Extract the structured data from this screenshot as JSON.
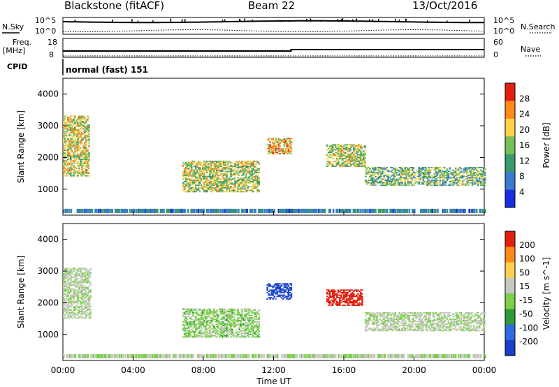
{
  "header": {
    "station": "Blackstone (fitACF)",
    "beam": "Beam 22",
    "date": "13/Oct/2016"
  },
  "status_panels": {
    "nsky_label": "N.Sky",
    "nsearch_label": "N.Search",
    "freq_label_top": "Freq.",
    "freq_label_bottom": "[MHz]",
    "nave_label": "Nave",
    "cpid_label": "CPID",
    "cpid_value": "normal (fast) 151",
    "noise_ticks_left": [
      "10^5",
      "10^0"
    ],
    "noise_ticks_right": [
      "10^5",
      "10^0"
    ],
    "freq_ticks_left": [
      "18",
      "8"
    ],
    "freq_ticks_right": [
      "60",
      "0"
    ]
  },
  "x_axis": {
    "label": "Time UT",
    "ticks": [
      "00:00",
      "04:00",
      "08:00",
      "12:00",
      "16:00",
      "20:00",
      "00:00"
    ]
  },
  "chart_data": [
    {
      "type": "heatmap",
      "title": "",
      "ylabel": "Slant Range [km]",
      "xlabel": "Time UT",
      "xlim_hours": [
        0,
        24
      ],
      "ylim": [
        180,
        4500
      ],
      "yticks": [
        1000,
        2000,
        3000,
        4000
      ],
      "colorbar_label": "Power [dB]",
      "colorbar_ticks": [
        "4",
        "8",
        "12",
        "16",
        "20",
        "24",
        "28"
      ],
      "colorbar_colors": [
        "#1b2fe0",
        "#3a7ad0",
        "#3a9a6a",
        "#76c05a",
        "#ffd24a",
        "#ff8a1a",
        "#e02010"
      ],
      "regions": [
        {
          "t0": 0.0,
          "t1": 1.5,
          "r0": 1400,
          "r1": 3300,
          "level": 0.6
        },
        {
          "t0": 6.8,
          "t1": 11.2,
          "r0": 900,
          "r1": 1900,
          "level": 0.55
        },
        {
          "t0": 11.6,
          "t1": 13.0,
          "r0": 2100,
          "r1": 2600,
          "level": 0.7
        },
        {
          "t0": 15.0,
          "t1": 17.2,
          "r0": 1700,
          "r1": 2400,
          "level": 0.55
        },
        {
          "t0": 17.2,
          "t1": 24.0,
          "r0": 1100,
          "r1": 1700,
          "level": 0.45
        }
      ]
    },
    {
      "type": "heatmap",
      "title": "",
      "ylabel": "Slant Range [km]",
      "xlabel": "Time UT",
      "xlim_hours": [
        0,
        24
      ],
      "ylim": [
        180,
        4500
      ],
      "yticks": [
        1000,
        2000,
        3000,
        4000
      ],
      "colorbar_label": "Velocity [m s^-1]",
      "colorbar_ticks": [
        "200",
        "100",
        "50",
        "15",
        "-15",
        "-50",
        "-100",
        "-200"
      ],
      "colorbar_colors": [
        "#1b3fc8",
        "#2f6ae0",
        "#2f9a3a",
        "#7bd04a",
        "#c8c8c0",
        "#ffd050",
        "#ff8a1a",
        "#e02010"
      ],
      "regions": [
        {
          "t0": 0.0,
          "t1": 1.6,
          "r0": 1500,
          "r1": 3100,
          "level": -0.05
        },
        {
          "t0": 6.8,
          "t1": 11.2,
          "r0": 900,
          "r1": 1800,
          "level": 0.1
        },
        {
          "t0": 11.6,
          "t1": 13.0,
          "r0": 2100,
          "r1": 2600,
          "level": 0.9
        },
        {
          "t0": 15.0,
          "t1": 17.0,
          "r0": 1900,
          "r1": 2400,
          "level": -0.95
        },
        {
          "t0": 17.2,
          "t1": 24.0,
          "r0": 1100,
          "r1": 1700,
          "level": -0.05
        }
      ]
    }
  ]
}
